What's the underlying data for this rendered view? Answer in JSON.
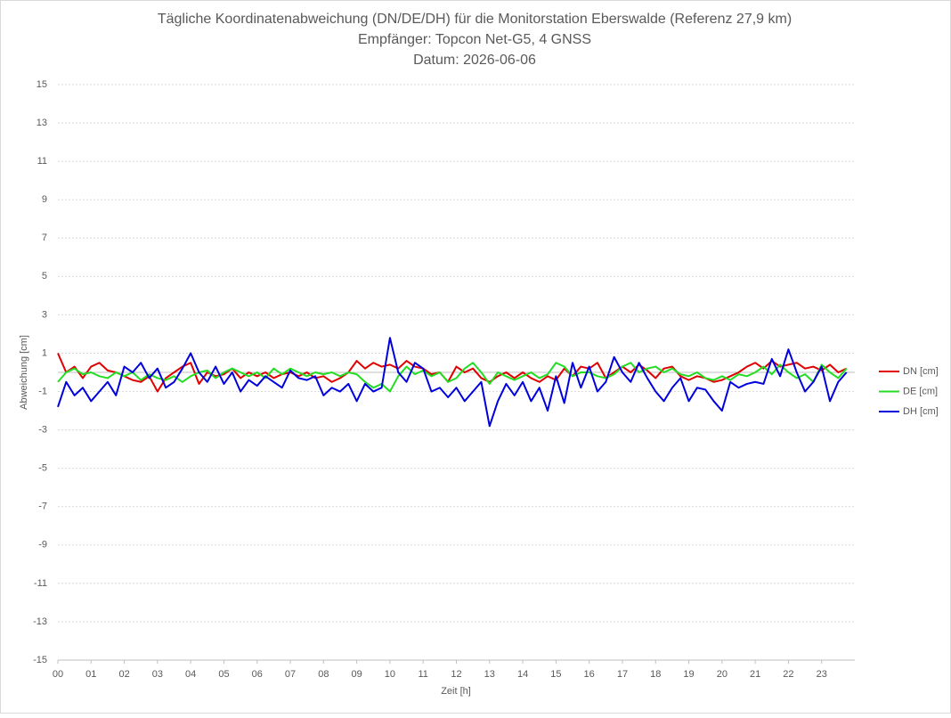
{
  "chart_data": {
    "type": "line",
    "title_lines": [
      "Tägliche Koordinatenabweichung (DN/DE/DH) für die Monitorstation Eberswalde (Referenz 27,9 km)",
      "Empfänger: Topcon Net-G5, 4 GNSS",
      "Datum: 2026-06-06"
    ],
    "x_label": "Zeit [h]",
    "y_label": "Abweichung [cm]",
    "x": [
      0,
      0.25,
      0.5,
      0.75,
      1,
      1.25,
      1.5,
      1.75,
      2,
      2.25,
      2.5,
      2.75,
      3,
      3.25,
      3.5,
      3.75,
      4,
      4.25,
      4.5,
      4.75,
      5,
      5.25,
      5.5,
      5.75,
      6,
      6.25,
      6.5,
      6.75,
      7,
      7.25,
      7.5,
      7.75,
      8,
      8.25,
      8.5,
      8.75,
      9,
      9.25,
      9.5,
      9.75,
      10,
      10.25,
      10.5,
      10.75,
      11,
      11.25,
      11.5,
      11.75,
      12,
      12.25,
      12.5,
      12.75,
      13,
      13.25,
      13.5,
      13.75,
      14,
      14.25,
      14.5,
      14.75,
      15,
      15.25,
      15.5,
      15.75,
      16,
      16.25,
      16.5,
      16.75,
      17,
      17.25,
      17.5,
      17.75,
      18,
      18.25,
      18.5,
      18.75,
      19,
      19.25,
      19.5,
      19.75,
      20,
      20.25,
      20.5,
      20.75,
      21,
      21.25,
      21.5,
      21.75,
      22,
      22.25,
      22.5,
      22.75,
      23,
      23.25,
      23.5,
      23.75
    ],
    "series": [
      {
        "name": "DN [cm]",
        "color": "#e00000",
        "values": [
          1.0,
          0.0,
          0.3,
          -0.3,
          0.3,
          0.5,
          0.1,
          0.0,
          -0.2,
          -0.4,
          -0.5,
          -0.2,
          -1.0,
          -0.3,
          0.0,
          0.3,
          0.5,
          -0.6,
          0.0,
          -0.2,
          -0.1,
          0.2,
          -0.3,
          0.0,
          -0.2,
          0.0,
          -0.3,
          -0.1,
          0.0,
          -0.2,
          0.0,
          -0.3,
          -0.2,
          -0.5,
          -0.3,
          0.0,
          0.6,
          0.2,
          0.5,
          0.3,
          0.4,
          0.2,
          0.6,
          0.3,
          0.2,
          -0.1,
          0.0,
          -0.5,
          0.3,
          0.0,
          0.2,
          -0.3,
          -0.5,
          -0.2,
          0.0,
          -0.3,
          0.0,
          -0.3,
          -0.5,
          -0.2,
          -0.4,
          0.2,
          -0.2,
          0.3,
          0.2,
          0.5,
          -0.3,
          0.0,
          0.3,
          0.0,
          0.4,
          0.1,
          -0.3,
          0.2,
          0.3,
          -0.2,
          -0.4,
          -0.2,
          -0.3,
          -0.5,
          -0.4,
          -0.2,
          0.0,
          0.3,
          0.5,
          0.2,
          0.6,
          0.3,
          0.4,
          0.5,
          0.2,
          0.3,
          0.1,
          0.4,
          0.0,
          0.2
        ]
      },
      {
        "name": "DE [cm]",
        "color": "#22dd22",
        "values": [
          -0.5,
          0.0,
          0.2,
          -0.1,
          0.0,
          -0.2,
          -0.3,
          0.0,
          -0.2,
          0.0,
          -0.4,
          -0.1,
          -0.3,
          -0.4,
          -0.2,
          -0.5,
          -0.2,
          0.0,
          0.1,
          -0.3,
          0.0,
          0.2,
          0.0,
          -0.2,
          0.0,
          -0.3,
          0.2,
          -0.1,
          0.2,
          0.0,
          -0.2,
          0.0,
          -0.1,
          0.0,
          -0.2,
          0.0,
          -0.1,
          -0.5,
          -0.8,
          -0.6,
          -1.0,
          -0.2,
          0.3,
          -0.1,
          0.1,
          -0.2,
          0.0,
          -0.5,
          -0.3,
          0.2,
          0.5,
          0.0,
          -0.6,
          0.0,
          -0.2,
          -0.4,
          -0.2,
          0.0,
          -0.3,
          -0.1,
          0.5,
          0.3,
          -0.2,
          0.0,
          0.0,
          -0.2,
          -0.3,
          -0.1,
          0.3,
          0.5,
          0.0,
          0.2,
          0.3,
          0.0,
          0.2,
          -0.1,
          -0.2,
          0.0,
          -0.3,
          -0.4,
          -0.2,
          -0.4,
          -0.1,
          -0.2,
          0.0,
          0.3,
          -0.1,
          0.4,
          0.0,
          -0.3,
          -0.1,
          -0.5,
          0.4,
          0.0,
          -0.3,
          0.2
        ]
      },
      {
        "name": "DH [cm]",
        "color": "#0000dd",
        "values": [
          -1.8,
          -0.5,
          -1.2,
          -0.8,
          -1.5,
          -1.0,
          -0.5,
          -1.2,
          0.3,
          0.0,
          0.5,
          -0.3,
          0.2,
          -0.8,
          -0.5,
          0.2,
          1.0,
          0.0,
          -0.5,
          0.3,
          -0.6,
          0.0,
          -1.0,
          -0.4,
          -0.7,
          -0.2,
          -0.5,
          -0.8,
          0.1,
          -0.3,
          -0.4,
          -0.2,
          -1.2,
          -0.8,
          -1.0,
          -0.6,
          -1.5,
          -0.6,
          -1.0,
          -0.8,
          1.8,
          0.0,
          -0.5,
          0.5,
          0.2,
          -1.0,
          -0.8,
          -1.3,
          -0.8,
          -1.5,
          -1.0,
          -0.5,
          -2.8,
          -1.5,
          -0.6,
          -1.2,
          -0.5,
          -1.5,
          -0.8,
          -2.0,
          -0.2,
          -1.6,
          0.5,
          -0.8,
          0.3,
          -1.0,
          -0.5,
          0.8,
          0.0,
          -0.5,
          0.5,
          -0.3,
          -1.0,
          -1.5,
          -0.8,
          -0.3,
          -1.5,
          -0.8,
          -0.9,
          -1.5,
          -2.0,
          -0.5,
          -0.8,
          -0.6,
          -0.5,
          -0.6,
          0.7,
          -0.2,
          1.2,
          0.0,
          -1.0,
          -0.5,
          0.3,
          -1.5,
          -0.5,
          0.0
        ]
      }
    ],
    "xlim": [
      0,
      24
    ],
    "xticks": [
      {
        "value": 0,
        "label": "00"
      },
      {
        "value": 1,
        "label": "01"
      },
      {
        "value": 2,
        "label": "02"
      },
      {
        "value": 3,
        "label": "03"
      },
      {
        "value": 4,
        "label": "04"
      },
      {
        "value": 5,
        "label": "05"
      },
      {
        "value": 6,
        "label": "06"
      },
      {
        "value": 7,
        "label": "07"
      },
      {
        "value": 8,
        "label": "08"
      },
      {
        "value": 9,
        "label": "09"
      },
      10,
      11,
      12,
      13,
      14,
      15,
      16,
      17,
      18,
      19,
      20,
      21,
      22,
      23
    ],
    "ylim": [
      -15,
      15
    ],
    "yticks": [
      -15,
      -13,
      -11,
      -9,
      -7,
      -5,
      -3,
      -1,
      1,
      3,
      5,
      7,
      9,
      11,
      13,
      15
    ],
    "grid": true,
    "legend": "right"
  }
}
